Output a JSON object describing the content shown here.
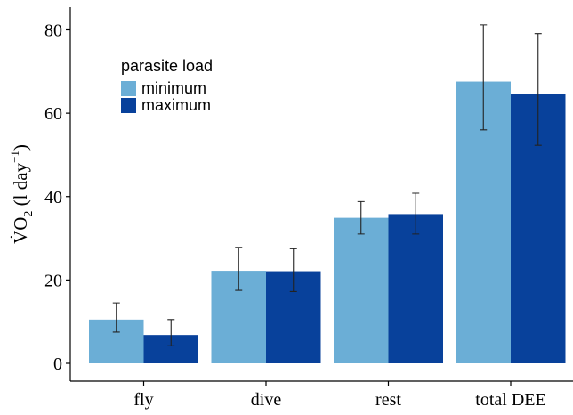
{
  "chart_data": {
    "type": "bar",
    "categories": [
      "fly",
      "dive",
      "rest",
      "total DEE"
    ],
    "series": [
      {
        "name": "minimum",
        "color": "#6BAED6",
        "values": [
          10.5,
          22.2,
          34.9,
          67.6
        ],
        "error_low": [
          7.5,
          17.5,
          31.0,
          56.0
        ],
        "error_high": [
          14.5,
          27.8,
          38.8,
          81.2
        ]
      },
      {
        "name": "maximum",
        "color": "#08419B",
        "values": [
          6.8,
          22.1,
          35.8,
          64.6
        ],
        "error_low": [
          4.2,
          17.2,
          31.0,
          52.3
        ],
        "error_high": [
          10.5,
          27.5,
          40.8,
          79.1
        ]
      }
    ],
    "ylim": [
      0,
      84
    ],
    "yticks": [
      0,
      20,
      40,
      60,
      80
    ],
    "ylabel": {
      "main": "V̇O",
      "sub": "2",
      "unit_open": " (l day",
      "unit_sup": "−1",
      "unit_close": ")"
    },
    "xlabel": "",
    "legend": {
      "title": "parasite load",
      "position": "top-left"
    },
    "grid": false
  }
}
